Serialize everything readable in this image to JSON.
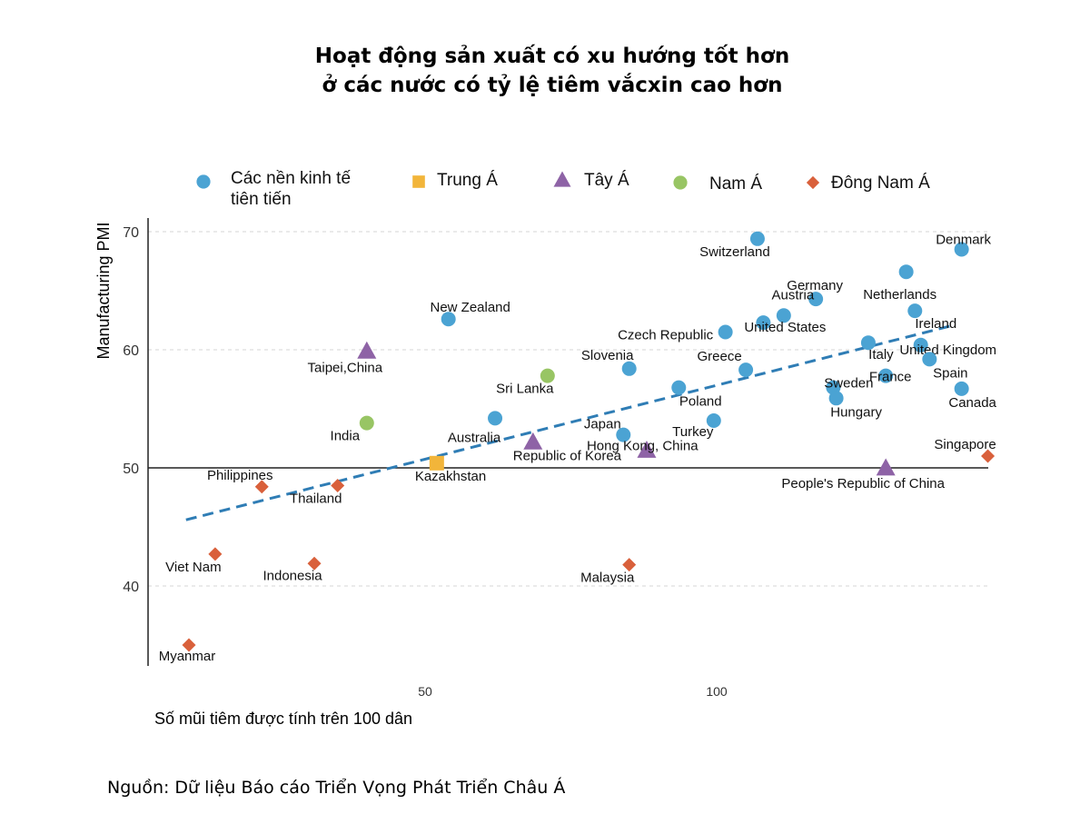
{
  "title_lines": [
    "Hoạt động sản xuất có xu hướng tốt hơn",
    "ở các nước có tỷ lệ tiêm vắcxin cao hơn"
  ],
  "source": "Nguồn: Dữ liệu Báo cáo Triển Vọng Phát Triển Châu Á",
  "chart_data": {
    "type": "scatter",
    "xlabel": "Số mũi tiêm được tính trên 100 dân",
    "ylabel": "Manufacturing PMI",
    "xlim": [
      3,
      147
    ],
    "ylim": [
      33.5,
      71
    ],
    "xticks": [
      50,
      100
    ],
    "yticks": [
      40,
      50,
      60,
      70
    ],
    "reference_line_y": 50,
    "legend": [
      {
        "group": "advanced",
        "label_lines": [
          "Các nền kinh tế",
          "tiên tiến"
        ],
        "color": "#4ba3d3",
        "shape": "circle"
      },
      {
        "group": "central",
        "label_lines": [
          "Trung Á"
        ],
        "color": "#f2b53a",
        "shape": "square"
      },
      {
        "group": "west",
        "label_lines": [
          "Tây Á"
        ],
        "color": "#8e63a6",
        "shape": "triangle"
      },
      {
        "group": "south",
        "label_lines": [
          "Nam Á"
        ],
        "color": "#98c564",
        "shape": "circle"
      },
      {
        "group": "southeast",
        "label_lines": [
          "Đông Nam Á"
        ],
        "color": "#d9603b",
        "shape": "diamond"
      }
    ],
    "trendline": {
      "x": [
        9,
        140
      ],
      "y": [
        45.6,
        62.0
      ],
      "color": "#2f7db5"
    },
    "points": [
      {
        "label": "Denmark",
        "group": "advanced",
        "x": 142,
        "y": 68.5
      },
      {
        "label": "Switzerland",
        "group": "advanced",
        "x": 107,
        "y": 69.4
      },
      {
        "label": "Netherlands",
        "group": "advanced",
        "x": 132.5,
        "y": 66.6
      },
      {
        "label": "Germany",
        "group": "advanced",
        "x": 117,
        "y": 64.3
      },
      {
        "label": "Austria",
        "group": "advanced",
        "x": 111.5,
        "y": 62.9
      },
      {
        "label": "Ireland",
        "group": "advanced",
        "x": 134,
        "y": 63.3
      },
      {
        "label": "Czech Republic",
        "group": "advanced",
        "x": 101.5,
        "y": 61.5
      },
      {
        "label": "United States",
        "group": "advanced",
        "x": 108,
        "y": 62.3
      },
      {
        "label": "Italy",
        "group": "advanced",
        "x": 126,
        "y": 60.6
      },
      {
        "label": "United Kingdom",
        "group": "advanced",
        "x": 135,
        "y": 60.4
      },
      {
        "label": "Spain",
        "group": "advanced",
        "x": 136.5,
        "y": 59.2
      },
      {
        "label": "Greece",
        "group": "advanced",
        "x": 105,
        "y": 58.3
      },
      {
        "label": "Sweden",
        "group": "advanced",
        "x": 120,
        "y": 56.8
      },
      {
        "label": "France",
        "group": "advanced",
        "x": 129,
        "y": 57.8
      },
      {
        "label": "Hungary",
        "group": "advanced",
        "x": 120.5,
        "y": 55.9
      },
      {
        "label": "Canada",
        "group": "advanced",
        "x": 142,
        "y": 56.7
      },
      {
        "label": "Slovenia",
        "group": "advanced",
        "x": 85,
        "y": 58.4
      },
      {
        "label": "Poland",
        "group": "advanced",
        "x": 93.5,
        "y": 56.8
      },
      {
        "label": "Turkey",
        "group": "advanced",
        "x": 99.5,
        "y": 54.0
      },
      {
        "label": "Japan",
        "group": "advanced",
        "x": 84,
        "y": 52.8
      },
      {
        "label": "New Zealand",
        "group": "advanced",
        "x": 54,
        "y": 62.6
      },
      {
        "label": "Australia",
        "group": "advanced",
        "x": 62,
        "y": 54.2
      },
      {
        "label": "Kazakhstan",
        "group": "central",
        "x": 52,
        "y": 50.4
      },
      {
        "label": "Taipei,China",
        "group": "west",
        "x": 40,
        "y": 59.9
      },
      {
        "label": "Republic of Korea",
        "group": "west",
        "x": 68.5,
        "y": 52.2
      },
      {
        "label": "Hong Kong, China",
        "group": "west",
        "x": 88,
        "y": 51.5
      },
      {
        "label": "People's Republic of China",
        "group": "west",
        "x": 129,
        "y": 50.0
      },
      {
        "label": "Sri Lanka",
        "group": "south",
        "x": 71,
        "y": 57.8
      },
      {
        "label": "India",
        "group": "south",
        "x": 40,
        "y": 53.8
      },
      {
        "label": "Singapore",
        "group": "southeast",
        "x": 146.5,
        "y": 51.0
      },
      {
        "label": "Philippines",
        "group": "southeast",
        "x": 22,
        "y": 48.4
      },
      {
        "label": "Thailand",
        "group": "southeast",
        "x": 35,
        "y": 48.5
      },
      {
        "label": "Viet Nam",
        "group": "southeast",
        "x": 14,
        "y": 42.7
      },
      {
        "label": "Indonesia",
        "group": "southeast",
        "x": 31,
        "y": 41.9
      },
      {
        "label": "Malaysia",
        "group": "southeast",
        "x": 85,
        "y": 41.8
      },
      {
        "label": "Myanmar",
        "group": "southeast",
        "x": 9.5,
        "y": 35.0
      }
    ]
  }
}
